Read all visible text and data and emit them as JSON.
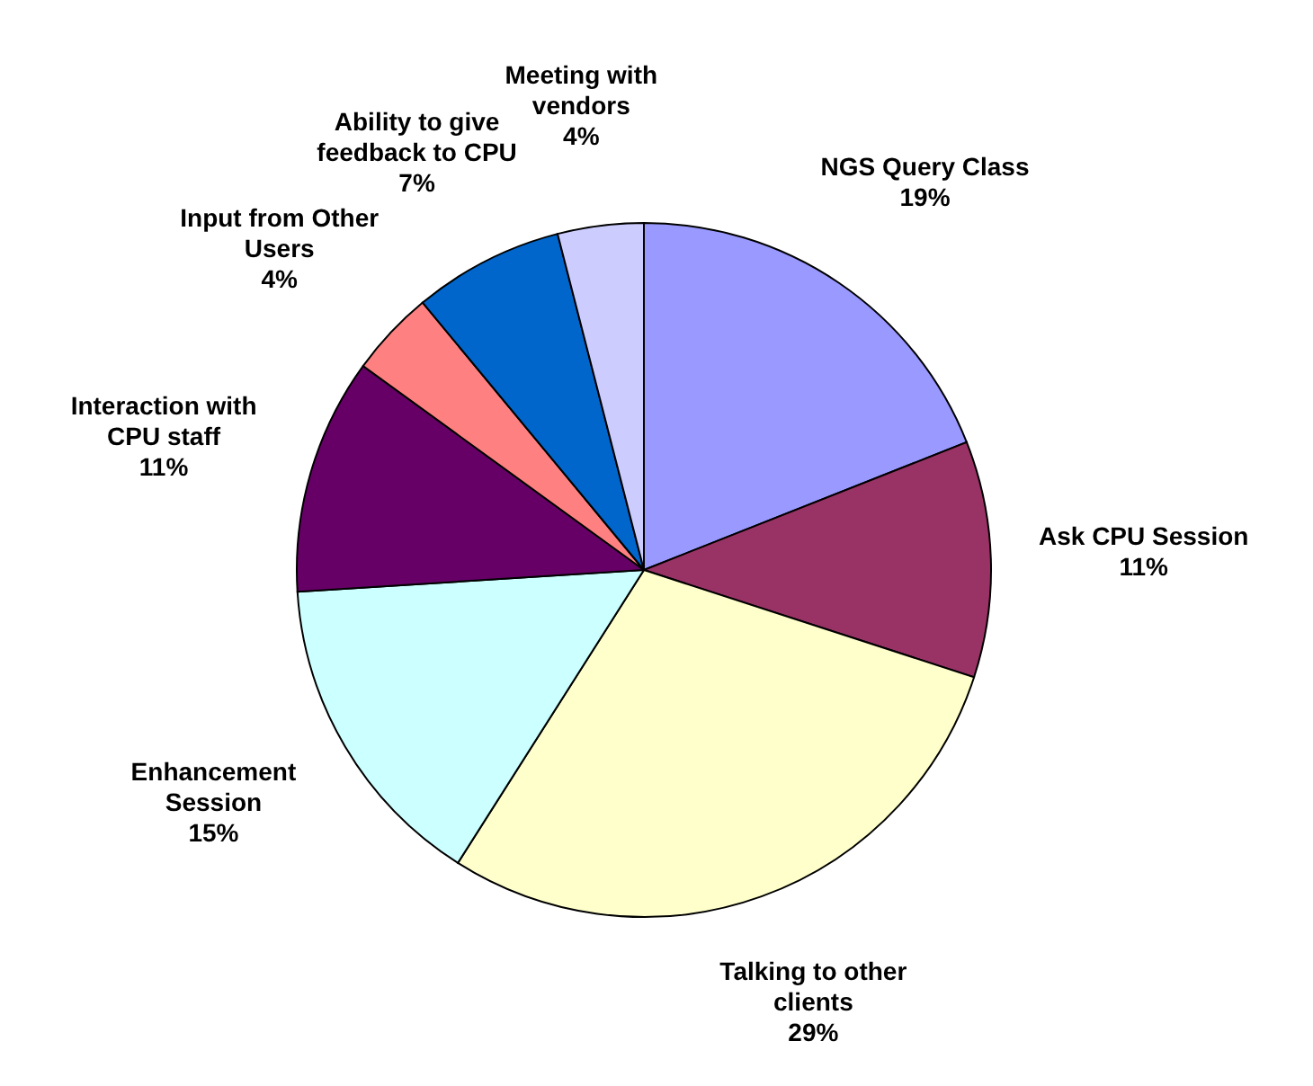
{
  "chart_data": {
    "type": "pie",
    "categories": [
      "NGS Query Class",
      "Ask CPU Session",
      "Talking to other clients",
      "Enhancement Session",
      "Interaction with CPU staff",
      "Input from Other Users",
      "Ability to give feedback to CPU",
      "Meeting with vendors"
    ],
    "values": [
      19,
      11,
      29,
      15,
      11,
      4,
      7,
      4
    ],
    "value_labels": [
      "19%",
      "11%",
      "29%",
      "15%",
      "11%",
      "4%",
      "7%",
      "4%"
    ],
    "colors": [
      "#9999ff",
      "#993366",
      "#ffffcc",
      "#ccffff",
      "#660066",
      "#ff8080",
      "#0066cc",
      "#ccccff"
    ],
    "legend": false
  }
}
